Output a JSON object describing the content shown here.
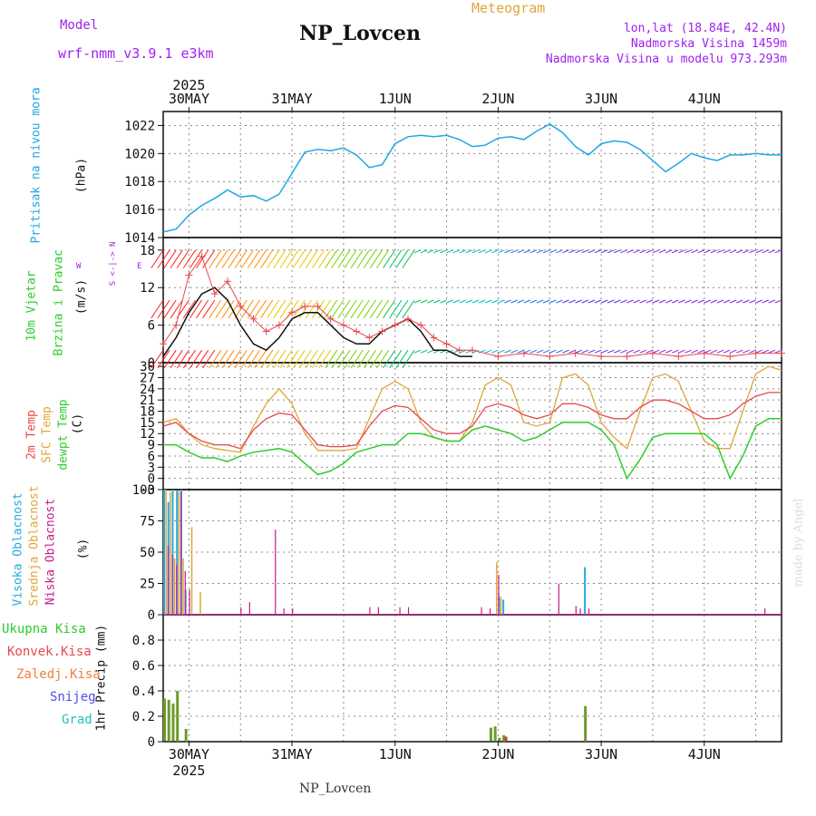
{
  "header": {
    "model_label": "Model",
    "model_name": "wrf-nmm_v3.9.1 e3km",
    "station": "NP_Lovcen",
    "title": "Meteogram",
    "lonlat": "lon,lat (18.84E, 42.4N)",
    "altitude": "Nadmorska Visina 1459m",
    "model_altitude": "Nadmorska Visina u modelu 973.293m",
    "footer_station": "NP_Lovcen",
    "watermark": "made by Angel"
  },
  "colors": {
    "pressure": "#1ea7e6",
    "temp2m": "#e8474b",
    "sfc": "#e0a63a",
    "dewpt": "#2ecc2e",
    "high_cloud": "#26a9de",
    "mid_cloud": "#e0a63a",
    "low_cloud": "#c8188c",
    "precip": "#6e9a2c",
    "purple": "#a020f0"
  },
  "time_axis": {
    "year_label": "2025",
    "days": [
      "30MAY",
      "31MAY",
      "1JUN",
      "2JUN",
      "3JUN",
      "4JUN"
    ]
  },
  "chart_data": [
    {
      "type": "line",
      "title": "Pritisak na nivou mora",
      "ylabel": "(hPa)",
      "ylim": [
        1014,
        1023
      ],
      "yticks": [
        1014,
        1016,
        1018,
        1020,
        1022
      ],
      "x_unit": "hours from 29MAY 18UTC",
      "series": [
        {
          "name": "Pritisak na nivou mora",
          "x": [
            0,
            3,
            6,
            9,
            12,
            15,
            18,
            21,
            24,
            27,
            30,
            33,
            36,
            39,
            42,
            45,
            48,
            51,
            54,
            57,
            60,
            63,
            66,
            69,
            72,
            75,
            78,
            81,
            84,
            87,
            90,
            93,
            96,
            99,
            102,
            105,
            108,
            111,
            114,
            117,
            120,
            123,
            126,
            129,
            132,
            135,
            138,
            141,
            144
          ],
          "values": [
            1014.4,
            1014.6,
            1015.6,
            1016.3,
            1016.8,
            1017.4,
            1016.9,
            1017.0,
            1016.6,
            1017.1,
            1018.6,
            1020.1,
            1020.3,
            1020.2,
            1020.4,
            1019.9,
            1019.0,
            1019.2,
            1020.7,
            1021.2,
            1021.3,
            1021.2,
            1021.3,
            1021.0,
            1020.5,
            1020.6,
            1021.1,
            1021.2,
            1021.0,
            1021.6,
            1022.1,
            1021.5,
            1020.5,
            1019.9,
            1020.7,
            1020.9,
            1020.8,
            1020.3,
            1019.5,
            1018.7,
            1019.3,
            1020.0,
            1019.7,
            1019.5,
            1019.9,
            1019.9,
            1020.0,
            1019.9,
            1019.9
          ]
        }
      ]
    },
    {
      "type": "line",
      "title": "10m Vjetar Brzina i Pravac",
      "ylabel": "(m/s)",
      "ylim": [
        0,
        20
      ],
      "yticks": [
        0,
        6,
        12,
        18
      ],
      "compass": {
        "north": "N",
        "south": "S",
        "east": "E",
        "west": "W"
      },
      "series": [
        {
          "name": "black",
          "x": [
            0,
            3,
            6,
            9,
            12,
            15,
            18,
            21,
            24,
            27,
            30,
            33,
            36,
            39,
            42,
            45,
            48,
            51,
            54,
            57,
            60,
            63,
            66,
            69,
            72
          ],
          "values": [
            1,
            4,
            8,
            11,
            12,
            10,
            6,
            3,
            2,
            4,
            7,
            8,
            8,
            6,
            4,
            3,
            3,
            5,
            6,
            7,
            5,
            2,
            2,
            1,
            1
          ]
        },
        {
          "name": "red",
          "x": [
            0,
            3,
            6,
            9,
            12,
            15,
            18,
            21,
            24,
            27,
            30,
            33,
            36,
            39,
            42,
            45,
            48,
            51,
            54,
            57,
            60,
            63,
            66,
            69,
            72,
            78,
            84,
            90,
            96,
            102,
            108,
            114,
            120,
            126,
            132,
            138,
            144
          ],
          "values": [
            3,
            6,
            14,
            17,
            11,
            13,
            9,
            7,
            5,
            6,
            8,
            9,
            9,
            7,
            6,
            5,
            4,
            5,
            6,
            7,
            6,
            4,
            3,
            2,
            2,
            1,
            1.5,
            1,
            1.5,
            1,
            1,
            1.5,
            1,
            1.5,
            1,
            1.5,
            1.5
          ]
        }
      ]
    },
    {
      "type": "line",
      "title": "2m Temp / SFC Temp / dewpt Temp",
      "ylabel": "(C)",
      "ylim": [
        -3,
        31
      ],
      "yticks": [
        -3,
        0,
        3,
        6,
        9,
        12,
        15,
        18,
        21,
        24,
        27,
        30
      ],
      "series": [
        {
          "name": "2m Temp",
          "x": [
            0,
            3,
            6,
            9,
            12,
            15,
            18,
            21,
            24,
            27,
            30,
            33,
            36,
            39,
            42,
            45,
            48,
            51,
            54,
            57,
            60,
            63,
            66,
            69,
            72,
            75,
            78,
            81,
            84,
            87,
            90,
            93,
            96,
            99,
            102,
            105,
            108,
            111,
            114,
            117,
            120,
            123,
            126,
            129,
            132,
            135,
            138,
            141,
            144
          ],
          "values": [
            14,
            15,
            12,
            10,
            9,
            9,
            8,
            13,
            16,
            17.5,
            17,
            13,
            9,
            8.5,
            8.5,
            9,
            14,
            18,
            19.5,
            19,
            16,
            13,
            12,
            12,
            14,
            19,
            20,
            19,
            17,
            16,
            17,
            20,
            20,
            19,
            17,
            16,
            16,
            19,
            21,
            21,
            20,
            18,
            16,
            16,
            17,
            20,
            22,
            23,
            23
          ]
        },
        {
          "name": "SFC Temp",
          "x": [
            0,
            3,
            6,
            9,
            12,
            15,
            18,
            21,
            24,
            27,
            30,
            33,
            36,
            39,
            42,
            45,
            48,
            51,
            54,
            57,
            60,
            63,
            66,
            69,
            72,
            75,
            78,
            81,
            84,
            87,
            90,
            93,
            96,
            99,
            102,
            105,
            108,
            111,
            114,
            117,
            120,
            123,
            126,
            129,
            132,
            135,
            138,
            141,
            144
          ],
          "values": [
            15,
            16,
            12,
            9,
            8,
            7.5,
            7,
            14,
            20,
            24,
            20,
            12,
            7.5,
            7.5,
            7.5,
            8,
            16,
            24,
            26,
            24,
            15,
            11,
            10,
            10,
            15,
            25,
            27,
            25,
            15,
            14,
            15,
            27,
            28,
            25,
            15,
            11,
            8,
            18,
            27,
            28,
            26,
            18,
            10,
            8,
            8,
            18,
            28,
            30,
            29
          ]
        },
        {
          "name": "dewpt Temp",
          "x": [
            0,
            3,
            6,
            9,
            12,
            15,
            18,
            21,
            24,
            27,
            30,
            33,
            36,
            39,
            42,
            45,
            48,
            51,
            54,
            57,
            60,
            63,
            66,
            69,
            72,
            75,
            78,
            81,
            84,
            87,
            90,
            93,
            96,
            99,
            102,
            105,
            108,
            111,
            114,
            117,
            120,
            123,
            126,
            129,
            132,
            135,
            138,
            141,
            144
          ],
          "values": [
            9,
            9,
            7,
            5.5,
            5.5,
            4.5,
            6,
            7,
            7.5,
            8,
            7,
            4,
            1,
            2,
            4,
            7,
            8,
            9,
            9,
            12,
            12,
            11,
            10,
            10,
            13,
            14,
            13,
            12,
            10,
            11,
            13,
            15,
            15,
            15,
            13,
            9,
            0,
            5,
            11,
            12,
            12,
            12,
            12,
            9,
            0,
            6,
            14,
            16,
            16
          ]
        }
      ]
    },
    {
      "type": "bar",
      "title": "Visoka / Srednja / Niska Oblacnost",
      "ylabel": "(%)",
      "ylim": [
        0,
        100
      ],
      "yticks": [
        0,
        25,
        50,
        75,
        100
      ],
      "series": [
        {
          "name": "Visoka Oblacnost",
          "x": [
            0,
            1,
            2,
            3,
            4,
            5,
            78,
            79,
            98
          ],
          "values": [
            100,
            90,
            100,
            99,
            100,
            20,
            15,
            12,
            38
          ]
        },
        {
          "name": "Srednja Oblacnost",
          "x": [
            0.5,
            1.5,
            2.5,
            3.5,
            4.5,
            6.5,
            8.5,
            77.5,
            78.5
          ],
          "values": [
            100,
            98,
            45,
            99,
            45,
            70,
            18,
            42,
            14
          ]
        },
        {
          "name": "Niska Oblacnost",
          "x": [
            1,
            2,
            3,
            4,
            5,
            6,
            18,
            20,
            26,
            28,
            30,
            48,
            50,
            55,
            57,
            74,
            76,
            78,
            92,
            96,
            97,
            99,
            140
          ],
          "values": [
            55,
            48,
            40,
            98,
            35,
            20,
            6,
            10,
            68,
            5,
            5,
            6,
            6,
            6,
            6,
            6,
            5,
            32,
            25,
            7,
            5,
            5,
            5
          ]
        }
      ]
    },
    {
      "type": "bar",
      "title": "1hr Precip",
      "ylabel": "1hr Precip (mm)",
      "ylim": [
        0,
        1.0
      ],
      "yticks": [
        0,
        0.2,
        0.4,
        0.6,
        0.8
      ],
      "legend": [
        "Ukupna Kisa",
        "Konvek.Kisa",
        "Zaledj.Kisa",
        "Snijeg",
        "Grad"
      ],
      "series": [
        {
          "name": "Ukupna Kisa",
          "x": [
            0,
            1,
            2,
            3,
            5,
            76,
            77,
            78,
            79,
            98
          ],
          "values": [
            0.34,
            0.33,
            0.3,
            0.4,
            0.1,
            0.11,
            0.12,
            0.03,
            0.05,
            0.28
          ]
        },
        {
          "name": "Zaledj.Kisa",
          "x": [
            79.5
          ],
          "values": [
            0.04
          ]
        }
      ]
    }
  ]
}
